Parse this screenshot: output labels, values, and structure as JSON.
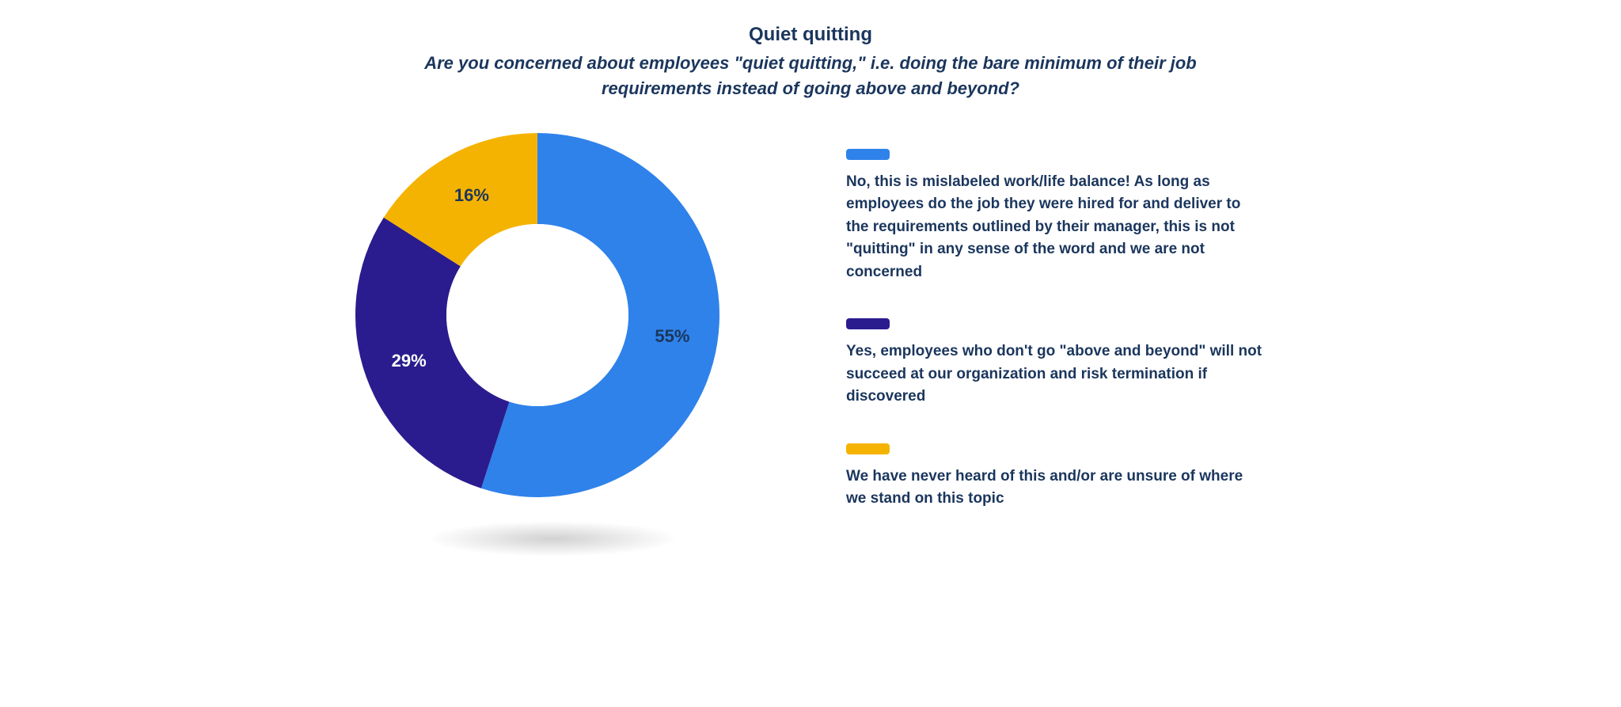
{
  "header": {
    "title": "Quiet quitting",
    "subtitle": "Are you concerned about employees \"quiet quitting,\" i.e. doing the bare minimum of their job requirements instead of going above and beyond?"
  },
  "chart": {
    "type": "donut",
    "outer_radius": 230,
    "inner_radius": 115,
    "start_angle_deg": 0,
    "background_color": "#ffffff",
    "text_color": "#1b365d",
    "title_fontsize": 24,
    "subtitle_fontsize": 22,
    "slice_label_fontsize": 22,
    "legend_text_fontsize": 19,
    "shadow_color": "rgba(0,0,0,0.18)",
    "slices": [
      {
        "id": "no",
        "value": 55,
        "percent_label": "55%",
        "color": "#2f82ea",
        "legend": "No, this is mislabeled work/life balance! As long as employees do the job they were hired for and deliver to the requirements outlined by their manager, this is not \"quitting\" in any sense of the word and we are not concerned"
      },
      {
        "id": "yes",
        "value": 29,
        "percent_label": "29%",
        "color": "#2a1c8e",
        "legend": "Yes, employees who don't go \"above and beyond\" will not succeed at our organization and risk termination if discovered"
      },
      {
        "id": "unsure",
        "value": 16,
        "percent_label": "16%",
        "color": "#f5b301",
        "legend": "We have never heard of this and/or are unsure of where we stand on this topic"
      }
    ]
  }
}
